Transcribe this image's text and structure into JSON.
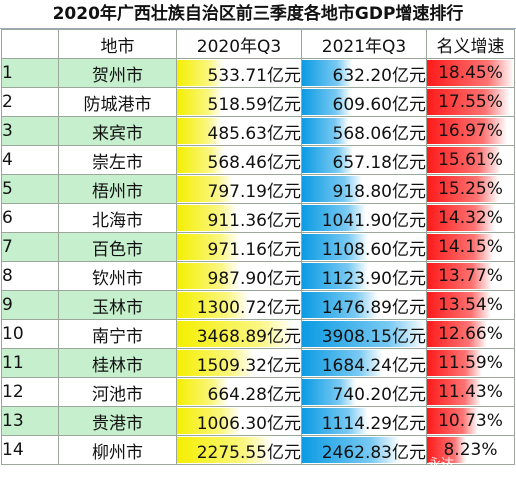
{
  "title": "2020年广西壮族自治区前三季度各地市GDP增速排行",
  "headers": [
    "",
    "地市",
    "2020年Q3",
    "2021年Q3",
    "名义增速"
  ],
  "rows": [
    {
      "rank": "1",
      "city": "贺州市",
      "q3_2020": "533.71亿元",
      "q3_2021": "632.20亿元",
      "growth": "18.45%"
    },
    {
      "rank": "2",
      "city": "防城港市",
      "q3_2020": "518.59亿元",
      "q3_2021": "609.60亿元",
      "growth": "17.55%"
    },
    {
      "rank": "3",
      "city": "来宾市",
      "q3_2020": "485.63亿元",
      "q3_2021": "568.06亿元",
      "growth": "16.97%"
    },
    {
      "rank": "4",
      "city": "崇左市",
      "q3_2020": "568.46亿元",
      "q3_2021": "657.18亿元",
      "growth": "15.61%"
    },
    {
      "rank": "5",
      "city": "梧州市",
      "q3_2020": "797.19亿元",
      "q3_2021": "918.80亿元",
      "growth": "15.25%"
    },
    {
      "rank": "6",
      "city": "北海市",
      "q3_2020": "911.36亿元",
      "q3_2021": "1041.90亿元",
      "growth": "14.32%"
    },
    {
      "rank": "7",
      "city": "百色市",
      "q3_2020": "971.16亿元",
      "q3_2021": "1108.60亿元",
      "growth": "14.15%"
    },
    {
      "rank": "8",
      "city": "钦州市",
      "q3_2020": "987.90亿元",
      "q3_2021": "1123.90亿元",
      "growth": "13.77%"
    },
    {
      "rank": "9",
      "city": "玉林市",
      "q3_2020": "1300.72亿元",
      "q3_2021": "1476.89亿元",
      "growth": "13.54%"
    },
    {
      "rank": "10",
      "city": "南宁市",
      "q3_2020": "3468.89亿元",
      "q3_2021": "3908.15亿元",
      "growth": "12.66%"
    },
    {
      "rank": "11",
      "city": "桂林市",
      "q3_2020": "1509.32亿元",
      "q3_2021": "1684.24亿元",
      "growth": "11.59%"
    },
    {
      "rank": "12",
      "city": "河池市",
      "q3_2020": "664.28亿元",
      "q3_2021": "740.20亿元",
      "growth": "11.43%"
    },
    {
      "rank": "13",
      "city": "贵港市",
      "q3_2020": "1006.30亿元",
      "q3_2021": "1114.29亿元",
      "growth": "10.73%"
    },
    {
      "rank": "14",
      "city": "柳州市",
      "q3_2020": "2275.55亿元",
      "q3_2021": "2462.83亿元",
      "growth": "8.23%"
    }
  ],
  "bar_scale": {
    "q3_2020": [
      533.71,
      518.59,
      485.63,
      568.46,
      797.19,
      911.36,
      971.16,
      987.9,
      1300.72,
      3468.89,
      1509.32,
      664.28,
      1006.3,
      2275.55
    ],
    "q3_2021": [
      632.2,
      609.6,
      568.06,
      657.18,
      918.8,
      1041.9,
      1108.6,
      1123.9,
      1476.89,
      3908.15,
      1684.24,
      740.2,
      1114.29,
      2462.83
    ],
    "growth": [
      18.45,
      17.55,
      16.97,
      15.61,
      15.25,
      14.32,
      14.15,
      13.77,
      13.54,
      12.66,
      11.59,
      11.43,
      10.73,
      8.23
    ]
  },
  "colors": {
    "row_highlight": "#c6efce",
    "bar_2020": "#f4ef00",
    "bar_2021": "#0b9be3",
    "bar_growth": "#ff1a1a"
  },
  "watermark": "永达"
}
